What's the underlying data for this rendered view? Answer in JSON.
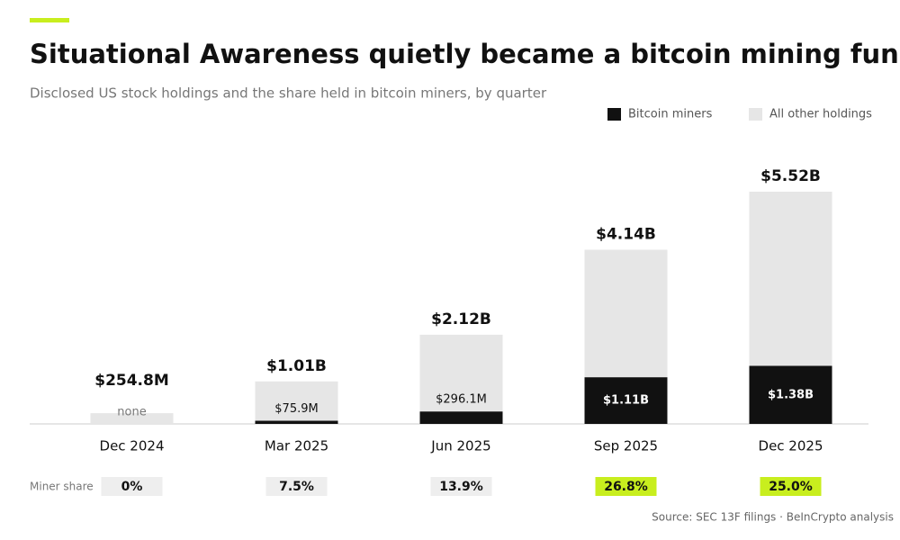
{
  "chart_data": {
    "type": "stacked-bar",
    "title": "Situational Awareness quietly became a bitcoin mining fund",
    "subtitle": "Disclosed US stock holdings and the share held in bitcoin miners, by quarter",
    "categories": [
      "Dec 2024",
      "Mar 2025",
      "Jun 2025",
      "Sep 2025",
      "Dec 2025"
    ],
    "series": [
      {
        "name": "Bitcoin miners",
        "color": "#111111",
        "values": [
          0,
          75.9,
          296.1,
          1110,
          1380
        ],
        "value_labels": [
          "none",
          "$75.9M",
          "$296.1M",
          "$1.11B",
          "$1.38B"
        ]
      },
      {
        "name": "All other holdings",
        "color": "#e6e6e6",
        "values": [
          254.8,
          934.1,
          1823.9,
          3030,
          4140
        ]
      }
    ],
    "totals": {
      "values": [
        254.8,
        1010,
        2120,
        4140,
        5520
      ],
      "value_labels": [
        "$254.8M",
        "$1.01B",
        "$2.12B",
        "$4.14B",
        "$5.52B"
      ]
    },
    "miner_share": {
      "label": "Miner share",
      "values": [
        0,
        7.5,
        13.9,
        26.8,
        25.0
      ],
      "value_labels": [
        "0%",
        "7.5%",
        "13.9%",
        "26.8%",
        "25.0%"
      ],
      "highlight": [
        false,
        false,
        false,
        true,
        true
      ],
      "highlight_color": "#c8ee1e",
      "color": "#eeeeee"
    },
    "source": "Source: SEC 13F filings · BeInCrypto analysis",
    "accent_color": "#c8ee1e"
  }
}
